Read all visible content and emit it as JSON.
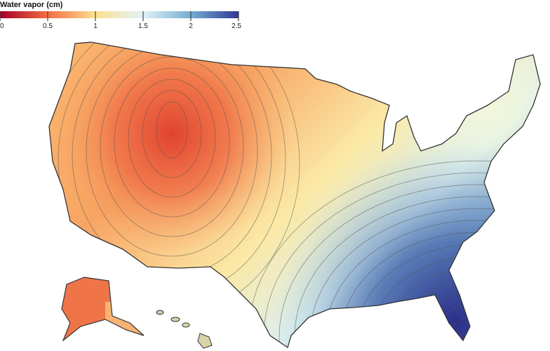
{
  "legend": {
    "title": "Water vapor (cm)",
    "ticks": [
      "0",
      "0.5",
      "1",
      "1.5",
      "2",
      "2.5"
    ],
    "range": [
      0,
      2.5
    ],
    "colors": [
      "#a50026",
      "#f46d43",
      "#fee090",
      "#e0f3f8",
      "#74add1",
      "#313695"
    ]
  },
  "map": {
    "subject": "Water vapor contour map of the United States",
    "contour_color": "#555555",
    "outline_color": "#333333"
  }
}
